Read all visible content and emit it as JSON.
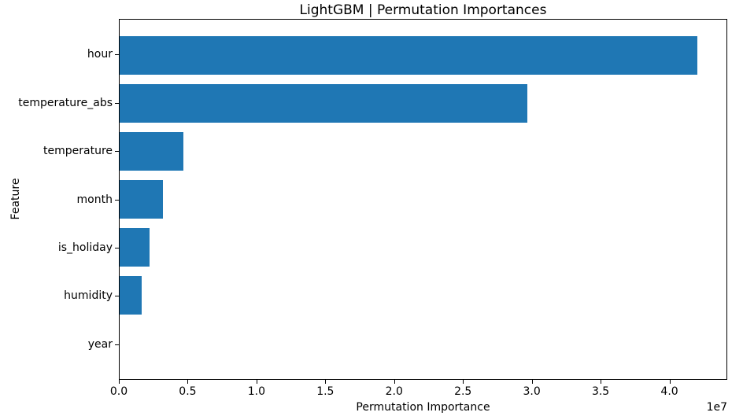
{
  "chart_data": {
    "type": "bar",
    "orientation": "horizontal",
    "title": "LightGBM | Permutation Importances",
    "xlabel": "Permutation Importance",
    "ylabel": "Feature",
    "x_offset_text": "1e7",
    "categories": [
      "hour",
      "temperature_abs",
      "temperature",
      "month",
      "is_holiday",
      "humidity",
      "year"
    ],
    "values": [
      42100000,
      29700000,
      4650000,
      3160000,
      2190000,
      1620000,
      0
    ],
    "xlim": [
      0,
      44200000
    ],
    "xtick_values": [
      0,
      5000000,
      10000000,
      15000000,
      20000000,
      25000000,
      30000000,
      35000000,
      40000000
    ],
    "xtick_labels": [
      "0.0",
      "0.5",
      "1.0",
      "1.5",
      "2.0",
      "2.5",
      "3.0",
      "3.5",
      "4.0"
    ],
    "bar_color": "#1f77b4",
    "background_color": "#ffffff",
    "grid": false,
    "legend": null
  }
}
